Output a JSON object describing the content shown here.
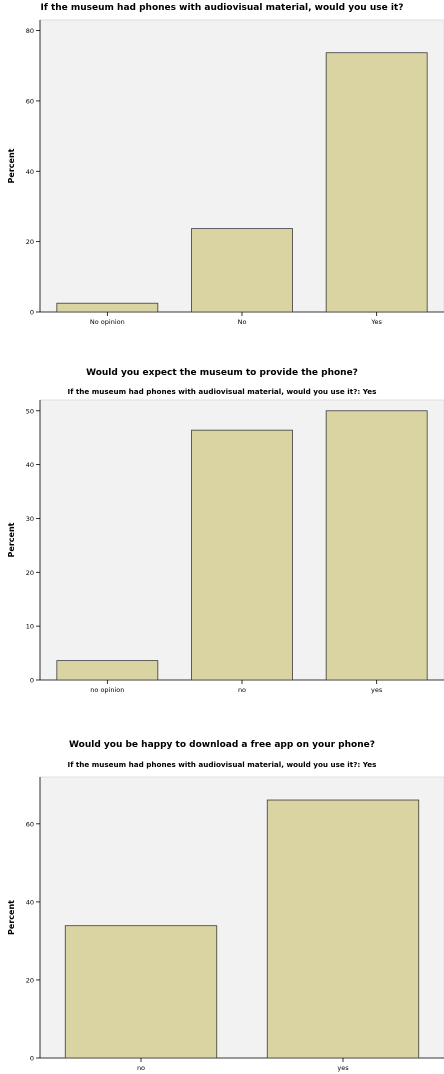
{
  "chart_data": [
    {
      "type": "bar",
      "title": "If the museum had  phones with audiovisual material, would you use it?",
      "subtitle": "",
      "ylabel": "Percent",
      "xlabel": "",
      "categories": [
        "No opinion",
        "No",
        "Yes"
      ],
      "values": [
        2.5,
        23.7,
        73.7
      ],
      "ylim": [
        0,
        83
      ],
      "yticks": [
        0,
        20,
        40,
        60,
        80
      ],
      "grid": false,
      "bar_color": "#d9d4a1",
      "background": "#f2f2f2"
    },
    {
      "type": "bar",
      "title": "Would you expect the museum to provide the phone?",
      "subtitle": "If the museum had  phones with audiovisual material, would you use it?: Yes",
      "ylabel": "Percent",
      "xlabel": "",
      "categories": [
        "no opinion",
        "no",
        "yes"
      ],
      "values": [
        3.6,
        46.4,
        50.0
      ],
      "ylim": [
        0,
        52
      ],
      "yticks": [
        0,
        10,
        20,
        30,
        40,
        50
      ],
      "grid": false,
      "bar_color": "#d9d4a1",
      "background": "#f2f2f2"
    },
    {
      "type": "bar",
      "title": "Would you be happy to download a free app on your phone?",
      "subtitle": "If the museum had  phones with audiovisual material, would you use it?: Yes",
      "ylabel": "Percent",
      "xlabel": "",
      "categories": [
        "no",
        "yes"
      ],
      "values": [
        33.9,
        66.1
      ],
      "ylim": [
        0,
        72
      ],
      "yticks": [
        0,
        20,
        40,
        60
      ],
      "grid": false,
      "bar_color": "#d9d4a1",
      "background": "#f2f2f2"
    }
  ]
}
